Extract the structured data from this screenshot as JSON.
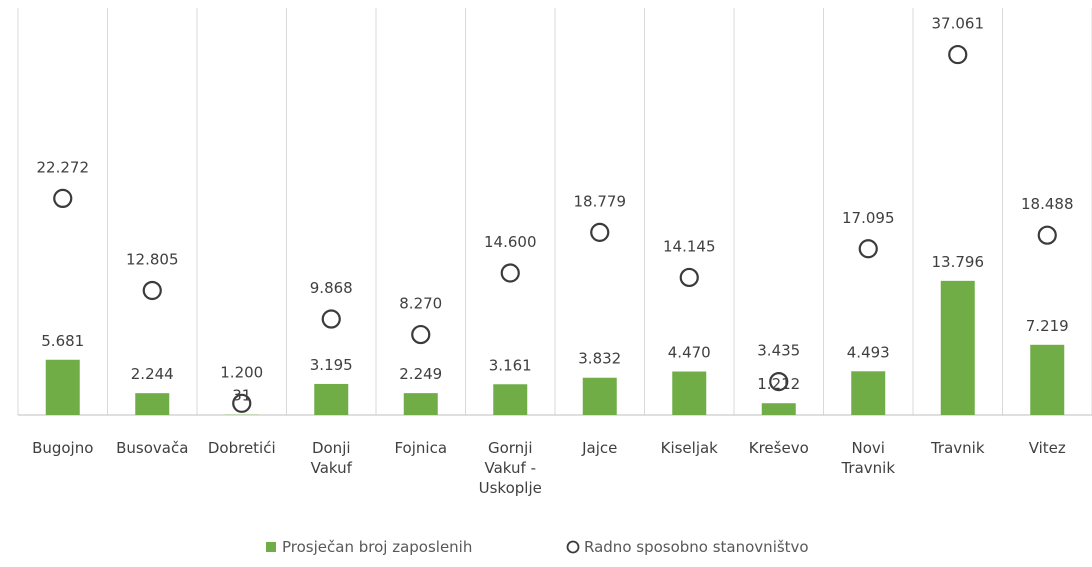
{
  "chart_data": {
    "type": "bar",
    "categories": [
      [
        "Bugojno"
      ],
      [
        "Busovača"
      ],
      [
        "Dobretići"
      ],
      [
        "Donji",
        "Vakuf"
      ],
      [
        "Fojnica"
      ],
      [
        "Gornji",
        "Vakuf -",
        "Uskoplje"
      ],
      [
        "Jajce"
      ],
      [
        "Kiseljak"
      ],
      [
        "Kreševo"
      ],
      [
        "Novi",
        "Travnik"
      ],
      [
        "Travnik"
      ],
      [
        "Vitez"
      ]
    ],
    "series": [
      {
        "name": "Prosječan broj zaposlenih",
        "render": "bar",
        "color": "#70ad47",
        "values": [
          5681,
          2244,
          31,
          3195,
          2249,
          3161,
          3832,
          4470,
          1212,
          4493,
          13796,
          7219
        ],
        "labels": [
          "5.681",
          "2.244",
          "31",
          "3.195",
          "2.249",
          "3.161",
          "3.832",
          "4.470",
          "1.212",
          "4.493",
          "13.796",
          "7.219"
        ]
      },
      {
        "name": "Radno sposobno stanovništvo",
        "render": "marker",
        "marker": "open-circle",
        "color": "#3b3b3b",
        "values": [
          22272,
          12805,
          1200,
          9868,
          8270,
          14600,
          18779,
          14145,
          3435,
          17095,
          37061,
          18488
        ],
        "labels": [
          "22.272",
          "12.805",
          "1.200",
          "9.868",
          "8.270",
          "14.600",
          "18.779",
          "14.145",
          "3.435",
          "17.095",
          "37.061",
          "18.488"
        ]
      }
    ],
    "ylim": [
      0,
      40000
    ],
    "grid": "vertical",
    "legend": "bottom-center"
  }
}
